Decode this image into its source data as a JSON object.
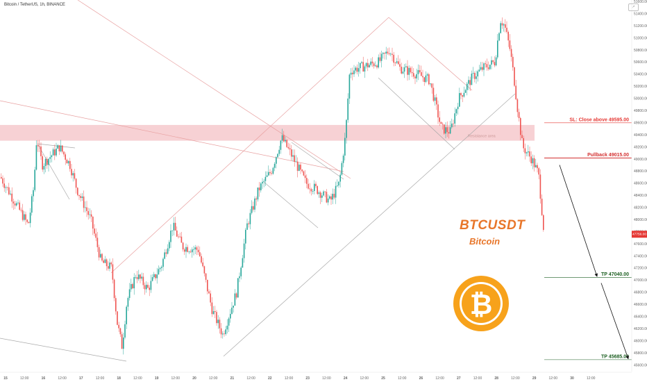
{
  "header": {
    "symbol": "Bitcoin / TetherUS, 1h, BINANCE"
  },
  "logo_box": "↗",
  "title": "BTCUSDT",
  "subtitle": "Bitcoin",
  "zone_label": "Resistance area",
  "levels": [
    {
      "label": "SL: Close above 49595.00",
      "price": 49595,
      "color": "#e53935"
    },
    {
      "label": "Pullback 49015.00",
      "price": 49015,
      "color": "#d32f2f"
    },
    {
      "label": "TP 47040.00",
      "price": 47040,
      "color": "#1b5e20"
    },
    {
      "label": "TP 45685.00",
      "price": 45685,
      "color": "#1b5e20"
    }
  ],
  "current_price": {
    "label": "47756.00",
    "price": 47756,
    "color": "#e53935"
  },
  "colors": {
    "up": "#26a69a",
    "down": "#ef5350",
    "zone": "#f6c9cc",
    "coin": "#f7a21b"
  },
  "chart_data": {
    "type": "candlestick",
    "y_axis": {
      "min": 45500,
      "max": 51600,
      "ticks": [
        45600,
        45800,
        46000,
        46200,
        46400,
        46600,
        46800,
        47000,
        47200,
        47400,
        47600,
        47800,
        48000,
        48200,
        48400,
        48600,
        48800,
        49000,
        49200,
        49400,
        49600,
        49800,
        50000,
        50200,
        50400,
        50600,
        50800,
        51000,
        51200,
        51400,
        51600
      ]
    },
    "x_ticks": [
      "15",
      "12:00",
      "16",
      "12:00",
      "17",
      "12:00",
      "18",
      "12:00",
      "19",
      "12:00",
      "20",
      "12:00",
      "21",
      "12:00",
      "22",
      "12:00",
      "23",
      "12:00",
      "24",
      "12:00",
      "25",
      "12:00",
      "26",
      "12:00",
      "27",
      "12:00",
      "28",
      "12:00",
      "29",
      "12:00",
      "30",
      "12:00"
    ],
    "resistance_zone": [
      49300,
      49560
    ],
    "anchors": [
      [
        0,
        48700
      ],
      [
        40,
        47900
      ],
      [
        48,
        48550
      ],
      [
        52,
        49350
      ],
      [
        60,
        48900
      ],
      [
        85,
        49200
      ],
      [
        100,
        48900
      ],
      [
        110,
        48500
      ],
      [
        130,
        48000
      ],
      [
        145,
        47300
      ],
      [
        160,
        47200
      ],
      [
        168,
        46300
      ],
      [
        175,
        45900
      ],
      [
        182,
        46650
      ],
      [
        195,
        47100
      ],
      [
        212,
        46850
      ],
      [
        232,
        47250
      ],
      [
        248,
        47900
      ],
      [
        262,
        47550
      ],
      [
        285,
        47500
      ],
      [
        305,
        46500
      ],
      [
        320,
        46100
      ],
      [
        340,
        46800
      ],
      [
        355,
        47900
      ],
      [
        372,
        48500
      ],
      [
        390,
        48800
      ],
      [
        405,
        49350
      ],
      [
        422,
        49000
      ],
      [
        440,
        48600
      ],
      [
        455,
        48500
      ],
      [
        475,
        48300
      ],
      [
        488,
        48600
      ],
      [
        497,
        49400
      ],
      [
        503,
        50450
      ],
      [
        515,
        50500
      ],
      [
        545,
        50600
      ],
      [
        560,
        50800
      ],
      [
        575,
        50500
      ],
      [
        600,
        50400
      ],
      [
        618,
        50300
      ],
      [
        635,
        49500
      ],
      [
        648,
        49450
      ],
      [
        660,
        50000
      ],
      [
        680,
        50350
      ],
      [
        695,
        50500
      ],
      [
        712,
        50600
      ],
      [
        720,
        51300
      ],
      [
        726,
        51200
      ],
      [
        734,
        50800
      ],
      [
        740,
        50300
      ],
      [
        745,
        49800
      ],
      [
        752,
        49200
      ],
      [
        765,
        49000
      ],
      [
        775,
        48750
      ],
      [
        783,
        47750
      ]
    ],
    "series": [
      {
        "name": "Resistance area",
        "type": "zone",
        "range": [
          49300,
          49560
        ]
      }
    ]
  }
}
